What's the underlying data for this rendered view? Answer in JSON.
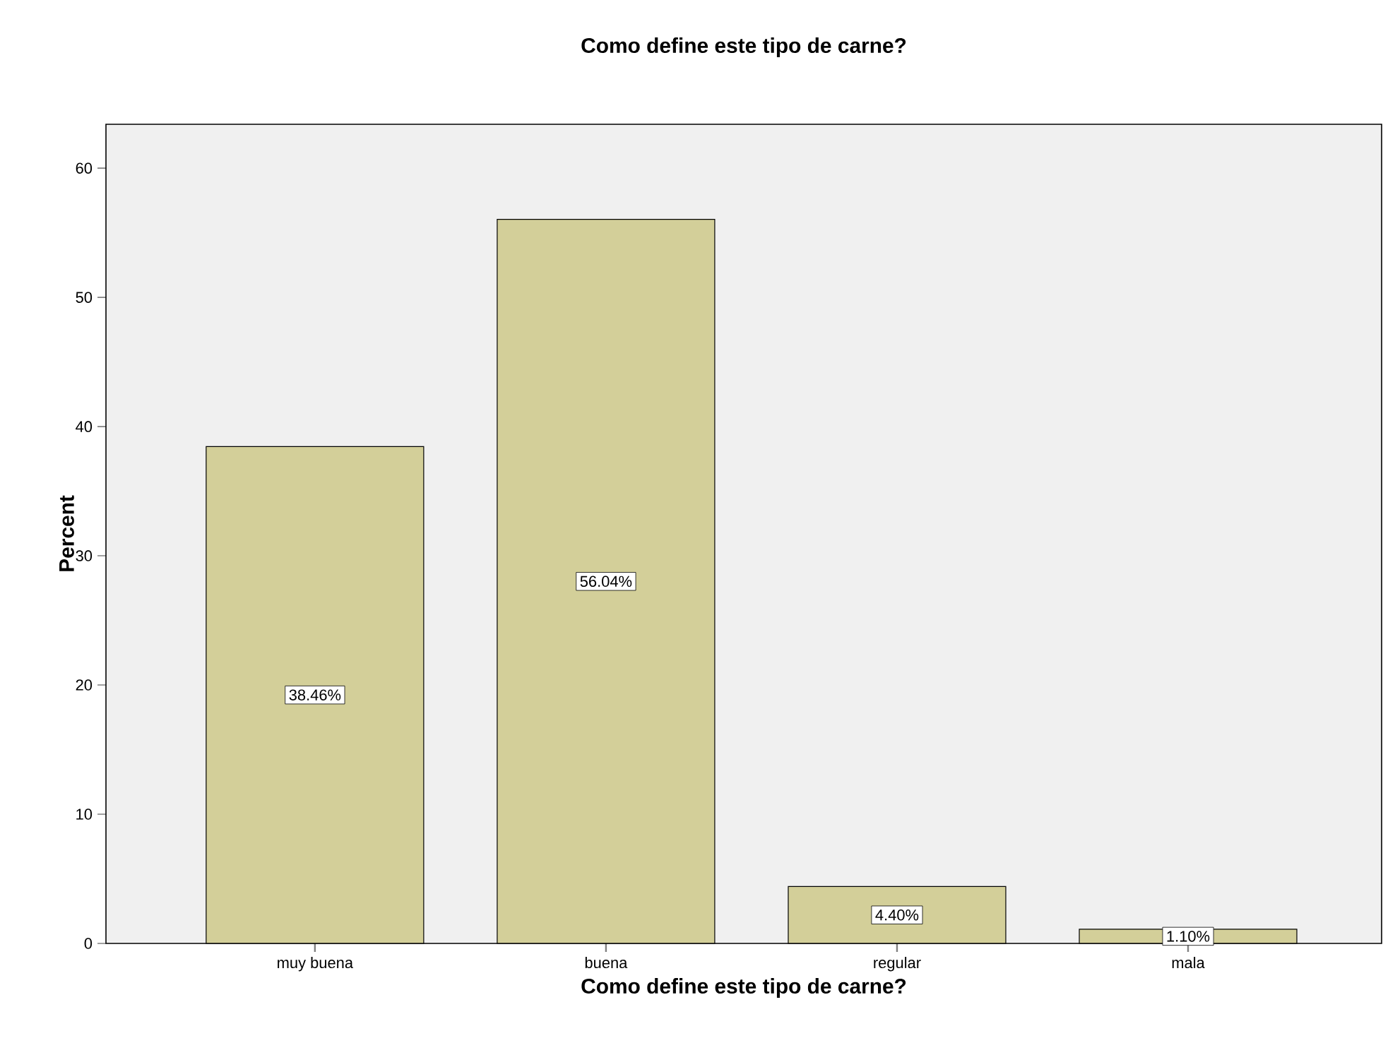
{
  "chart_data": {
    "type": "bar",
    "title": "Como define este tipo  de carne?",
    "xlabel": "Como define este tipo  de carne?",
    "ylabel": "Percent",
    "categories": [
      "muy buena",
      "buena",
      "regular",
      "mala"
    ],
    "values": [
      38.46,
      56.04,
      4.4,
      1.1
    ],
    "value_labels": [
      "38.46%",
      "56.04%",
      "4.40%",
      "1.10%"
    ],
    "color": "#d3cf99",
    "ylim": [
      0,
      63.4
    ],
    "yticks": [
      0,
      10,
      20,
      30,
      40,
      50,
      60
    ]
  }
}
